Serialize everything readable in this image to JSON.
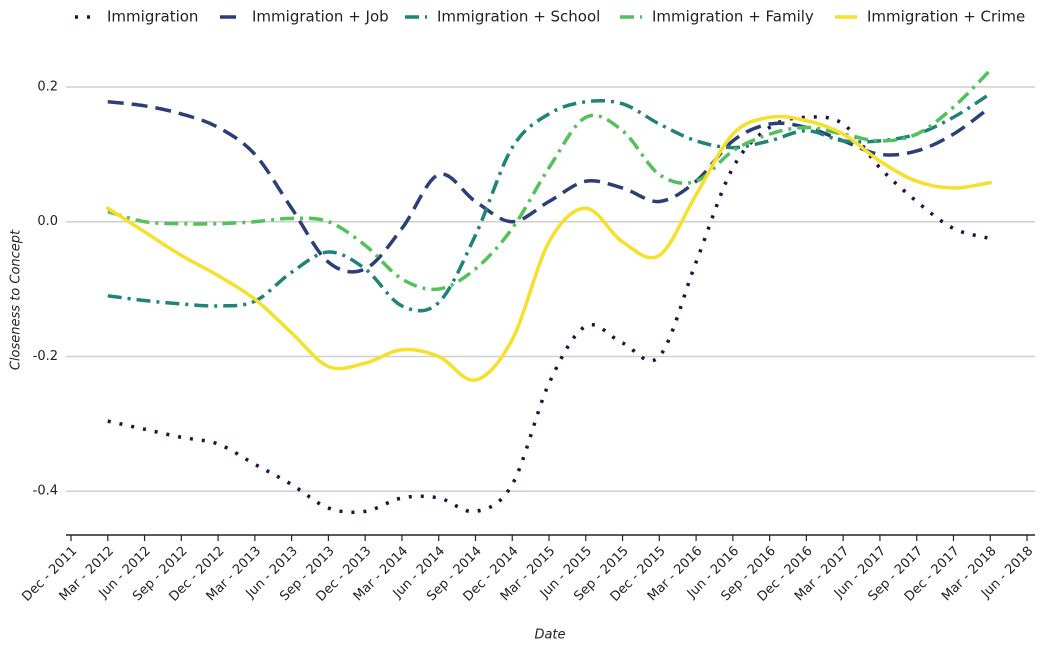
{
  "chart_data": {
    "type": "line",
    "x_label": "Date",
    "y_label": "Closeness to Concept",
    "categories": [
      "Dec - 2011",
      "Mar - 2012",
      "Jun - 2012",
      "Sep - 2012",
      "Dec - 2012",
      "Mar - 2013",
      "Jun - 2013",
      "Sep - 2013",
      "Dec - 2013",
      "Mar - 2014",
      "Jun - 2014",
      "Sep - 2014",
      "Dec - 2014",
      "Mar - 2015",
      "Jun - 2015",
      "Sep - 2015",
      "Dec - 2015",
      "Mar - 2016",
      "Jun - 2016",
      "Sep - 2016",
      "Dec - 2016",
      "Mar - 2017",
      "Jun - 2017",
      "Sep - 2017",
      "Dec - 2017",
      "Mar - 2018",
      "Jun - 2018"
    ],
    "series": [
      {
        "name": "Immigration",
        "color": "#2d0b3e",
        "style": "dotted",
        "values": [
          null,
          -0.296,
          -0.308,
          -0.32,
          -0.33,
          -0.36,
          -0.39,
          -0.425,
          -0.43,
          -0.41,
          -0.41,
          -0.43,
          -0.39,
          -0.24,
          -0.155,
          -0.18,
          -0.2,
          -0.06,
          0.08,
          0.14,
          0.155,
          0.145,
          0.08,
          0.03,
          -0.01,
          -0.025,
          null
        ]
      },
      {
        "name": "Immigration + Job",
        "color": "#2c3e78",
        "style": "dashed",
        "values": [
          null,
          0.178,
          0.172,
          0.16,
          0.14,
          0.1,
          0.02,
          -0.06,
          -0.07,
          -0.01,
          0.07,
          0.03,
          0.0,
          0.03,
          0.06,
          0.05,
          0.03,
          0.06,
          0.12,
          0.145,
          0.14,
          0.12,
          0.1,
          0.105,
          0.13,
          0.17,
          null
        ]
      },
      {
        "name": "Immigration + School",
        "color": "#21827a",
        "style": "dashdot",
        "values": [
          null,
          -0.11,
          -0.117,
          -0.122,
          -0.125,
          -0.118,
          -0.075,
          -0.045,
          -0.07,
          -0.125,
          -0.12,
          -0.02,
          0.11,
          0.16,
          0.178,
          0.175,
          0.145,
          0.12,
          0.11,
          0.12,
          0.135,
          0.12,
          0.12,
          0.13,
          0.155,
          0.19,
          null
        ]
      },
      {
        "name": "Immigration + Family",
        "color": "#52c15a",
        "style": "dashdot",
        "values": [
          null,
          0.015,
          0.0,
          -0.003,
          -0.003,
          0.0,
          0.005,
          0.0,
          -0.035,
          -0.085,
          -0.1,
          -0.07,
          -0.01,
          0.08,
          0.155,
          0.135,
          0.07,
          0.06,
          0.105,
          0.13,
          0.14,
          0.13,
          0.12,
          0.13,
          0.17,
          0.225,
          null
        ]
      },
      {
        "name": "Immigration + Crime",
        "color": "#f5e02a",
        "style": "solid",
        "values": [
          null,
          0.02,
          -0.015,
          -0.05,
          -0.08,
          -0.115,
          -0.165,
          -0.215,
          -0.21,
          -0.19,
          -0.2,
          -0.235,
          -0.175,
          -0.03,
          0.02,
          -0.03,
          -0.05,
          0.04,
          0.13,
          0.155,
          0.15,
          0.13,
          0.09,
          0.06,
          0.05,
          0.058,
          null
        ]
      }
    ],
    "ylim": [
      -0.465,
      0.24
    ],
    "yticks": [
      -0.4,
      -0.2,
      {
        "value": 0,
        "label": "0.0"
      },
      0.2
    ],
    "grid": true
  }
}
